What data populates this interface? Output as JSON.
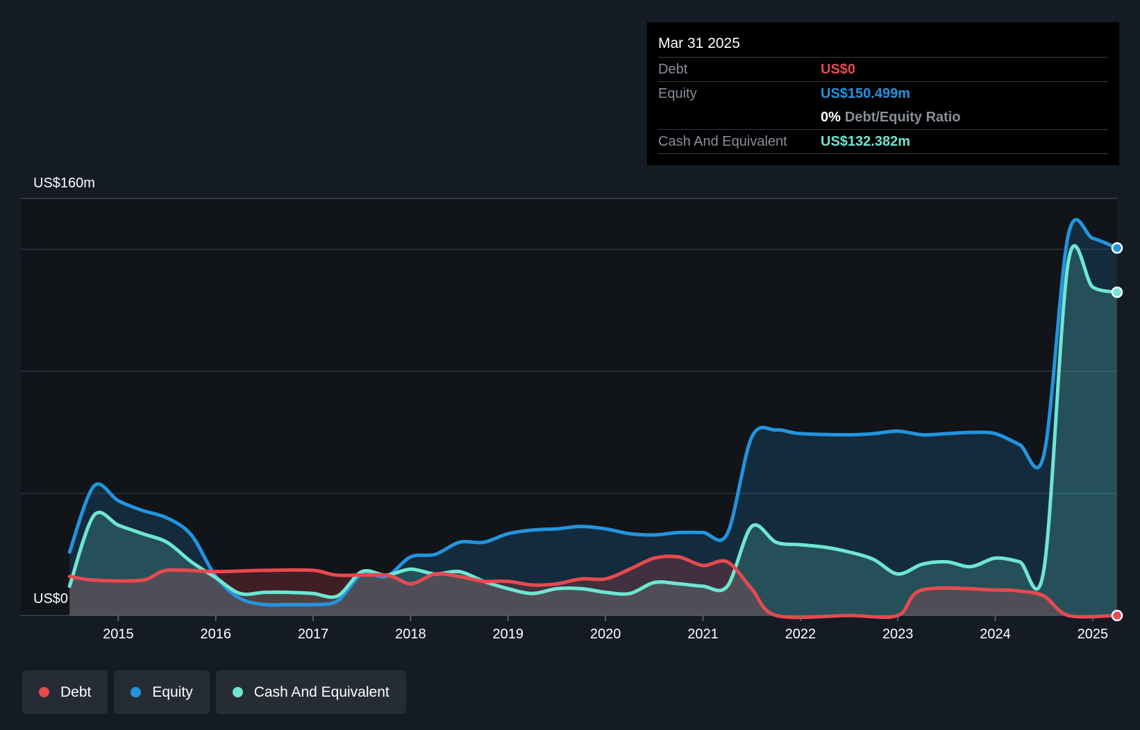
{
  "colors": {
    "background": "#151b24",
    "debt": "#e64a4f",
    "equity": "#2394df",
    "cash": "#6ee6d3"
  },
  "tooltip": {
    "date": "Mar 31 2025",
    "debt_label": "Debt",
    "debt_value": "US$0",
    "equity_label": "Equity",
    "equity_value": "US$150.499m",
    "ratio_value": "0%",
    "ratio_label": "Debt/Equity Ratio",
    "cash_label": "Cash And Equivalent",
    "cash_value": "US$132.382m"
  },
  "legend": [
    {
      "name": "Debt",
      "color": "#e64a4f"
    },
    {
      "name": "Equity",
      "color": "#2394df"
    },
    {
      "name": "Cash And Equivalent",
      "color": "#6ee6d3"
    }
  ],
  "chart_data": {
    "type": "area",
    "y_top_label": "US$160m",
    "y_bottom_label": "US$0",
    "ylim": [
      0,
      160
    ],
    "xlim": [
      2014.0,
      2025.25
    ],
    "x_ticks": [
      2015,
      2016,
      2017,
      2018,
      2019,
      2020,
      2021,
      2022,
      2023,
      2024,
      2025
    ],
    "grid": true,
    "series": [
      {
        "name": "Debt",
        "color": "#e64a4f",
        "points": [
          [
            2014.5,
            16
          ],
          [
            2014.75,
            14.5
          ],
          [
            2015.25,
            14.5
          ],
          [
            2015.5,
            18.5
          ],
          [
            2016,
            18
          ],
          [
            2016.5,
            18.5
          ],
          [
            2017,
            18.5
          ],
          [
            2017.25,
            16.5
          ],
          [
            2017.75,
            16.5
          ],
          [
            2018,
            13
          ],
          [
            2018.25,
            17
          ],
          [
            2018.5,
            16
          ],
          [
            2018.75,
            14
          ],
          [
            2019,
            14
          ],
          [
            2019.25,
            12.5
          ],
          [
            2019.5,
            13
          ],
          [
            2019.75,
            15
          ],
          [
            2020,
            15
          ],
          [
            2020.25,
            19
          ],
          [
            2020.5,
            23.5
          ],
          [
            2020.75,
            24
          ],
          [
            2021,
            20.5
          ],
          [
            2021.25,
            22
          ],
          [
            2021.5,
            11
          ],
          [
            2021.75,
            0
          ],
          [
            2022.5,
            0
          ],
          [
            2023,
            0
          ],
          [
            2023.25,
            10.5
          ],
          [
            2024,
            10.5
          ],
          [
            2024.25,
            10
          ],
          [
            2024.5,
            8
          ],
          [
            2024.75,
            0
          ],
          [
            2025.25,
            0
          ]
        ]
      },
      {
        "name": "Equity",
        "color": "#2394df",
        "points": [
          [
            2014.5,
            26
          ],
          [
            2014.75,
            53
          ],
          [
            2015,
            47
          ],
          [
            2015.25,
            43
          ],
          [
            2015.5,
            40
          ],
          [
            2015.75,
            33
          ],
          [
            2016,
            16
          ],
          [
            2016.25,
            7
          ],
          [
            2016.5,
            4.5
          ],
          [
            2016.75,
            4.5
          ],
          [
            2017,
            4.5
          ],
          [
            2017.25,
            6
          ],
          [
            2017.5,
            17
          ],
          [
            2017.75,
            16
          ],
          [
            2018,
            24
          ],
          [
            2018.25,
            25
          ],
          [
            2018.5,
            30
          ],
          [
            2018.75,
            30
          ],
          [
            2019,
            33.5
          ],
          [
            2019.25,
            35
          ],
          [
            2019.5,
            35.5
          ],
          [
            2019.75,
            36.5
          ],
          [
            2020,
            35.5
          ],
          [
            2020.25,
            33.5
          ],
          [
            2020.5,
            33
          ],
          [
            2020.75,
            34
          ],
          [
            2021,
            34
          ],
          [
            2021.25,
            33.5
          ],
          [
            2021.5,
            73
          ],
          [
            2021.75,
            76
          ],
          [
            2022,
            74.5
          ],
          [
            2022.5,
            74
          ],
          [
            2022.75,
            74.5
          ],
          [
            2023,
            75.5
          ],
          [
            2023.25,
            74
          ],
          [
            2023.5,
            74.5
          ],
          [
            2023.75,
            75
          ],
          [
            2024,
            74.5
          ],
          [
            2024.25,
            70
          ],
          [
            2024.5,
            66
          ],
          [
            2024.75,
            156
          ],
          [
            2025,
            154.5
          ],
          [
            2025.25,
            150.5
          ]
        ]
      },
      {
        "name": "Cash And Equivalent",
        "color": "#6ee6d3",
        "points": [
          [
            2014.5,
            12
          ],
          [
            2014.75,
            41
          ],
          [
            2015,
            37
          ],
          [
            2015.25,
            33.5
          ],
          [
            2015.5,
            30
          ],
          [
            2015.75,
            22
          ],
          [
            2016,
            15.5
          ],
          [
            2016.25,
            9
          ],
          [
            2016.5,
            9.5
          ],
          [
            2016.75,
            9.5
          ],
          [
            2017,
            9
          ],
          [
            2017.25,
            8
          ],
          [
            2017.5,
            18
          ],
          [
            2017.75,
            16.5
          ],
          [
            2018,
            19
          ],
          [
            2018.25,
            17
          ],
          [
            2018.5,
            18
          ],
          [
            2018.75,
            14
          ],
          [
            2019,
            11
          ],
          [
            2019.25,
            9
          ],
          [
            2019.5,
            11
          ],
          [
            2019.75,
            11
          ],
          [
            2020,
            9.5
          ],
          [
            2020.25,
            9
          ],
          [
            2020.5,
            13.5
          ],
          [
            2020.75,
            13
          ],
          [
            2021,
            12
          ],
          [
            2021.25,
            12
          ],
          [
            2021.5,
            36.5
          ],
          [
            2021.75,
            30
          ],
          [
            2022,
            29
          ],
          [
            2022.25,
            28
          ],
          [
            2022.5,
            26
          ],
          [
            2022.75,
            23
          ],
          [
            2023,
            17
          ],
          [
            2023.25,
            21
          ],
          [
            2023.5,
            22
          ],
          [
            2023.75,
            20
          ],
          [
            2024,
            23.5
          ],
          [
            2024.25,
            22
          ],
          [
            2024.5,
            19
          ],
          [
            2024.75,
            145
          ],
          [
            2025,
            134.5
          ],
          [
            2025.25,
            132.4
          ]
        ]
      }
    ]
  }
}
